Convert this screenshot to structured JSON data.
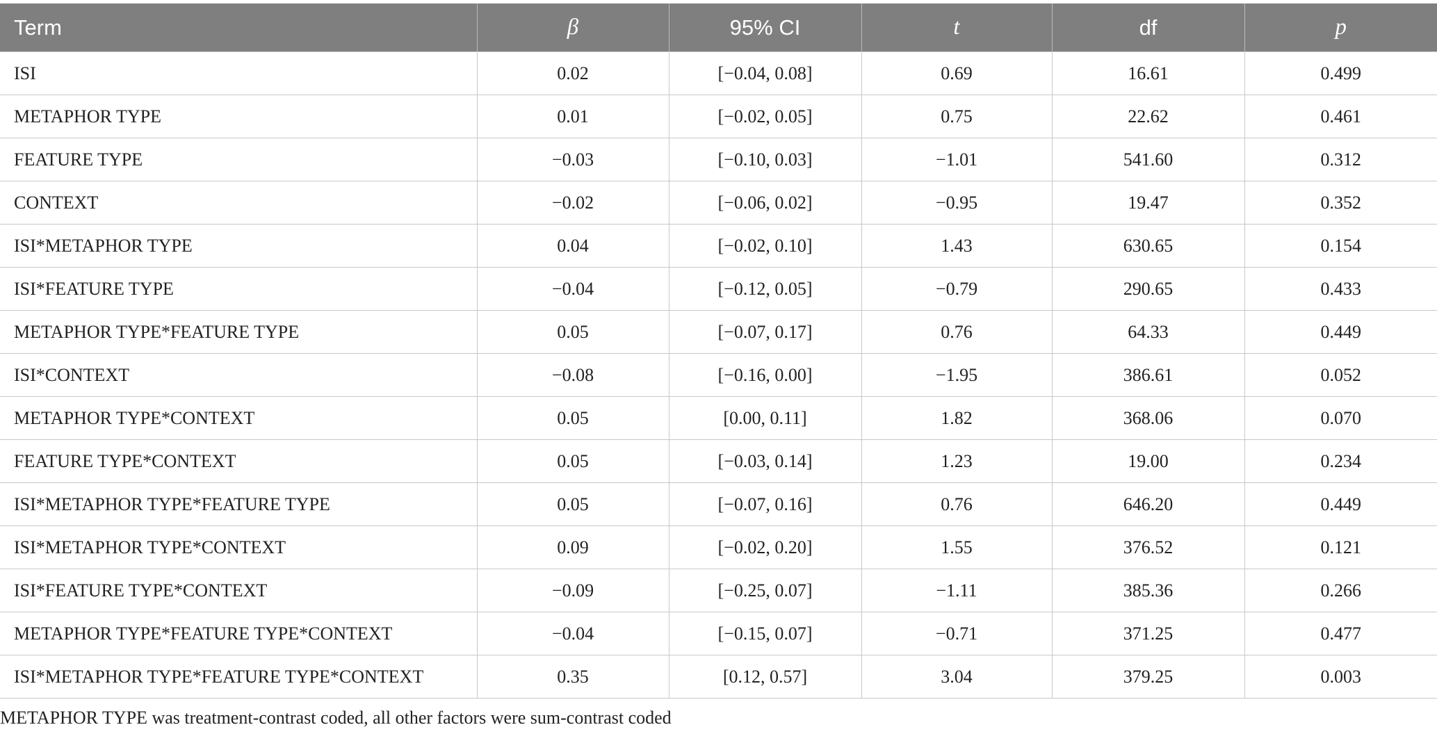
{
  "table": {
    "header": [
      "Term",
      "β",
      "95% CI",
      "t",
      "df",
      "p"
    ],
    "rows": [
      [
        "ISI",
        "0.02",
        "[−0.04, 0.08]",
        "0.69",
        "16.61",
        "0.499"
      ],
      [
        "METAPHOR TYPE",
        "0.01",
        "[−0.02, 0.05]",
        "0.75",
        "22.62",
        "0.461"
      ],
      [
        "FEATURE TYPE",
        "−0.03",
        "[−0.10, 0.03]",
        "−1.01",
        "541.60",
        "0.312"
      ],
      [
        "CONTEXT",
        "−0.02",
        "[−0.06, 0.02]",
        "−0.95",
        "19.47",
        "0.352"
      ],
      [
        "ISI*METAPHOR TYPE",
        "0.04",
        "[−0.02, 0.10]",
        "1.43",
        "630.65",
        "0.154"
      ],
      [
        "ISI*FEATURE TYPE",
        "−0.04",
        "[−0.12, 0.05]",
        "−0.79",
        "290.65",
        "0.433"
      ],
      [
        "METAPHOR TYPE*FEATURE TYPE",
        "0.05",
        "[−0.07, 0.17]",
        "0.76",
        "64.33",
        "0.449"
      ],
      [
        "ISI*CONTEXT",
        "−0.08",
        "[−0.16, 0.00]",
        "−1.95",
        "386.61",
        "0.052"
      ],
      [
        "METAPHOR TYPE*CONTEXT",
        "0.05",
        "[0.00, 0.11]",
        "1.82",
        "368.06",
        "0.070"
      ],
      [
        "FEATURE TYPE*CONTEXT",
        "0.05",
        "[−0.03, 0.14]",
        "1.23",
        "19.00",
        "0.234"
      ],
      [
        "ISI*METAPHOR TYPE*FEATURE TYPE",
        "0.05",
        "[−0.07, 0.16]",
        "0.76",
        "646.20",
        "0.449"
      ],
      [
        "ISI*METAPHOR TYPE*CONTEXT",
        "0.09",
        "[−0.02, 0.20]",
        "1.55",
        "376.52",
        "0.121"
      ],
      [
        "ISI*FEATURE TYPE*CONTEXT",
        "−0.09",
        "[−0.25, 0.07]",
        "−1.11",
        "385.36",
        "0.266"
      ],
      [
        "METAPHOR TYPE*FEATURE TYPE*CONTEXT",
        "−0.04",
        "[−0.15, 0.07]",
        "−0.71",
        "371.25",
        "0.477"
      ],
      [
        "ISI*METAPHOR TYPE*FEATURE TYPE*CONTEXT",
        "0.35",
        "[0.12, 0.57]",
        "3.04",
        "379.25",
        "0.003"
      ]
    ]
  },
  "footnote": "METAPHOR TYPE was treatment-contrast coded, all other factors were sum-contrast coded"
}
